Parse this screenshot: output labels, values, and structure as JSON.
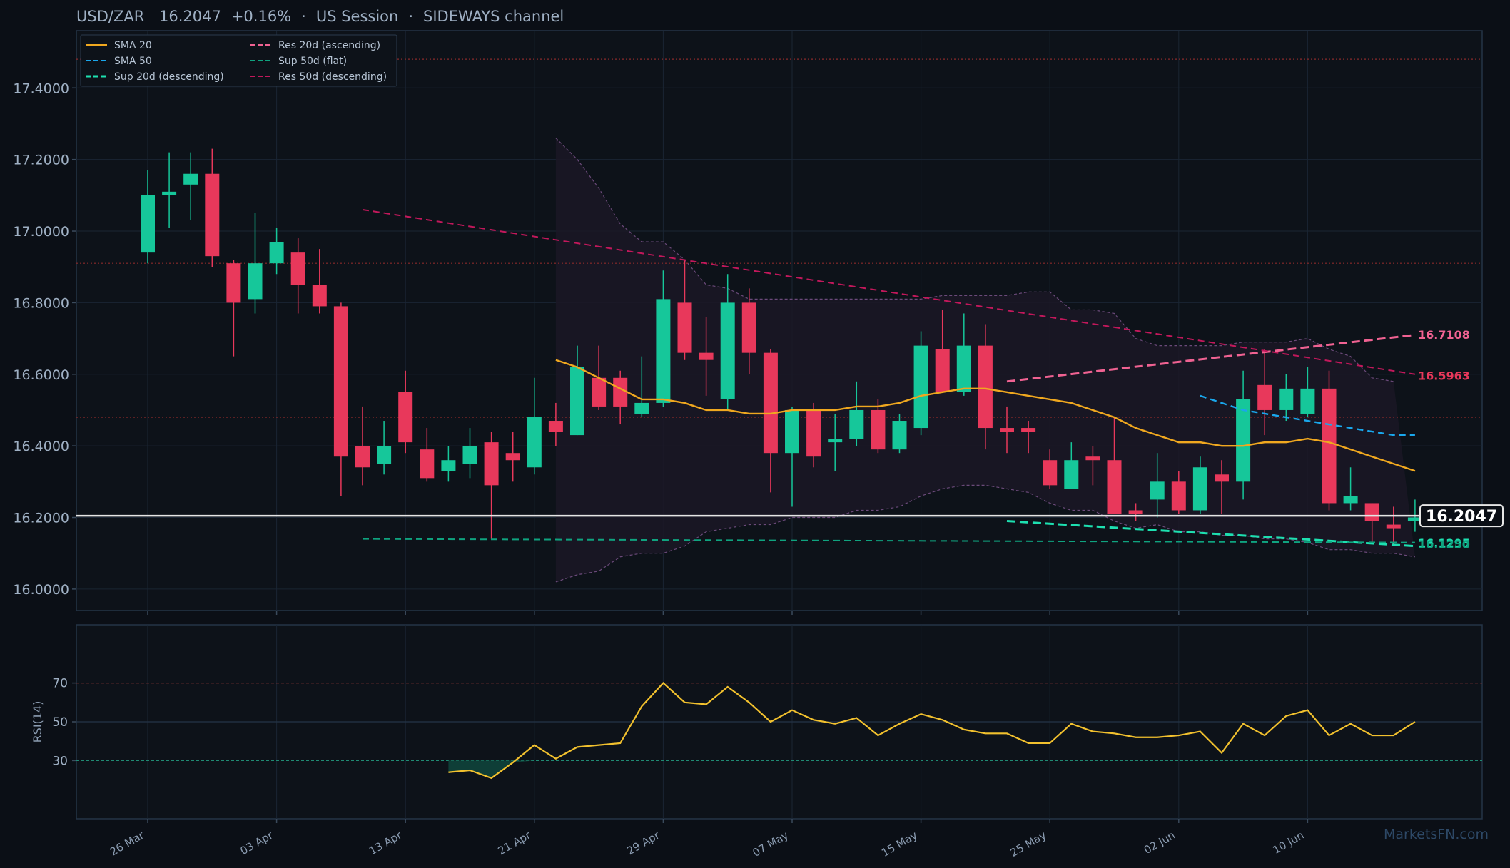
{
  "header": {
    "pair": "USD/ZAR",
    "price": "16.2047",
    "change": "+0.16%",
    "sep1": "·",
    "session": "US Session",
    "sep2": "·",
    "channel": "SIDEWAYS channel"
  },
  "watermark": "MarketsFN.com",
  "colors": {
    "background": "#0b0f16",
    "panel": "#0d1219",
    "bull": "#16c79a",
    "bear": "#e8385b",
    "sma20": "#f0a81f",
    "sma50": "#1aa7ec",
    "sup20": "#1de0b0",
    "res20": "#f06292",
    "sup50": "#0fa37f",
    "res50": "#c2185b",
    "rsi": "#f2c12e",
    "band": "#6b4a7a"
  },
  "chart_data": [
    {
      "type": "candlestick",
      "title": "",
      "ylim": [
        15.94,
        17.56
      ],
      "y_ticks": [
        "16.0000",
        "16.2000",
        "16.4000",
        "16.6000",
        "16.8000",
        "17.0000",
        "17.2000",
        "17.4000"
      ],
      "x_ticks": [
        "26 Mar",
        "03 Apr",
        "13 Apr",
        "21 Apr",
        "29 Apr",
        "07 May",
        "15 May",
        "25 May",
        "02 Jun",
        "10 Jun"
      ],
      "x_tick_index": [
        0,
        6,
        12,
        18,
        24,
        30,
        36,
        42,
        48,
        54
      ],
      "candles": [
        {
          "o": 16.94,
          "h": 17.17,
          "l": 16.91,
          "c": 17.1
        },
        {
          "o": 17.1,
          "h": 17.22,
          "l": 17.01,
          "c": 17.11
        },
        {
          "o": 17.13,
          "h": 17.22,
          "l": 17.03,
          "c": 17.16
        },
        {
          "o": 17.16,
          "h": 17.23,
          "l": 16.9,
          "c": 16.93
        },
        {
          "o": 16.91,
          "h": 16.92,
          "l": 16.65,
          "c": 16.8
        },
        {
          "o": 16.81,
          "h": 17.05,
          "l": 16.77,
          "c": 16.91
        },
        {
          "o": 16.91,
          "h": 17.01,
          "l": 16.88,
          "c": 16.97
        },
        {
          "o": 16.94,
          "h": 16.98,
          "l": 16.77,
          "c": 16.85
        },
        {
          "o": 16.85,
          "h": 16.95,
          "l": 16.77,
          "c": 16.79
        },
        {
          "o": 16.79,
          "h": 16.8,
          "l": 16.26,
          "c": 16.37
        },
        {
          "o": 16.4,
          "h": 16.51,
          "l": 16.29,
          "c": 16.34
        },
        {
          "o": 16.35,
          "h": 16.47,
          "l": 16.32,
          "c": 16.4
        },
        {
          "o": 16.55,
          "h": 16.61,
          "l": 16.38,
          "c": 16.41
        },
        {
          "o": 16.39,
          "h": 16.45,
          "l": 16.3,
          "c": 16.31
        },
        {
          "o": 16.33,
          "h": 16.4,
          "l": 16.3,
          "c": 16.36
        },
        {
          "o": 16.35,
          "h": 16.45,
          "l": 16.31,
          "c": 16.4
        },
        {
          "o": 16.41,
          "h": 16.44,
          "l": 16.14,
          "c": 16.29
        },
        {
          "o": 16.38,
          "h": 16.44,
          "l": 16.3,
          "c": 16.36
        },
        {
          "o": 16.34,
          "h": 16.59,
          "l": 16.32,
          "c": 16.48
        },
        {
          "o": 16.47,
          "h": 16.52,
          "l": 16.4,
          "c": 16.44
        },
        {
          "o": 16.43,
          "h": 16.68,
          "l": 16.43,
          "c": 16.62
        },
        {
          "o": 16.59,
          "h": 16.68,
          "l": 16.5,
          "c": 16.51
        },
        {
          "o": 16.59,
          "h": 16.61,
          "l": 16.46,
          "c": 16.51
        },
        {
          "o": 16.49,
          "h": 16.65,
          "l": 16.48,
          "c": 16.52
        },
        {
          "o": 16.52,
          "h": 16.89,
          "l": 16.51,
          "c": 16.81
        },
        {
          "o": 16.8,
          "h": 16.92,
          "l": 16.64,
          "c": 16.66
        },
        {
          "o": 16.66,
          "h": 16.76,
          "l": 16.54,
          "c": 16.64
        },
        {
          "o": 16.53,
          "h": 16.88,
          "l": 16.5,
          "c": 16.8
        },
        {
          "o": 16.8,
          "h": 16.84,
          "l": 16.6,
          "c": 16.66
        },
        {
          "o": 16.66,
          "h": 16.67,
          "l": 16.27,
          "c": 16.38
        },
        {
          "o": 16.38,
          "h": 16.51,
          "l": 16.23,
          "c": 16.5
        },
        {
          "o": 16.5,
          "h": 16.52,
          "l": 16.34,
          "c": 16.37
        },
        {
          "o": 16.41,
          "h": 16.49,
          "l": 16.33,
          "c": 16.42
        },
        {
          "o": 16.42,
          "h": 16.58,
          "l": 16.4,
          "c": 16.5
        },
        {
          "o": 16.5,
          "h": 16.53,
          "l": 16.38,
          "c": 16.39
        },
        {
          "o": 16.39,
          "h": 16.49,
          "l": 16.38,
          "c": 16.47
        },
        {
          "o": 16.45,
          "h": 16.72,
          "l": 16.43,
          "c": 16.68
        },
        {
          "o": 16.67,
          "h": 16.78,
          "l": 16.55,
          "c": 16.55
        },
        {
          "o": 16.55,
          "h": 16.77,
          "l": 16.54,
          "c": 16.68
        },
        {
          "o": 16.68,
          "h": 16.74,
          "l": 16.39,
          "c": 16.45
        },
        {
          "o": 16.45,
          "h": 16.51,
          "l": 16.38,
          "c": 16.44
        },
        {
          "o": 16.45,
          "h": 16.47,
          "l": 16.38,
          "c": 16.44
        },
        {
          "o": 16.36,
          "h": 16.39,
          "l": 16.28,
          "c": 16.29
        },
        {
          "o": 16.28,
          "h": 16.41,
          "l": 16.28,
          "c": 16.36
        },
        {
          "o": 16.37,
          "h": 16.4,
          "l": 16.29,
          "c": 16.36
        },
        {
          "o": 16.36,
          "h": 16.48,
          "l": 16.21,
          "c": 16.21
        },
        {
          "o": 16.22,
          "h": 16.24,
          "l": 16.19,
          "c": 16.21
        },
        {
          "o": 16.25,
          "h": 16.38,
          "l": 16.2,
          "c": 16.3
        },
        {
          "o": 16.3,
          "h": 16.33,
          "l": 16.21,
          "c": 16.22
        },
        {
          "o": 16.22,
          "h": 16.37,
          "l": 16.21,
          "c": 16.34
        },
        {
          "o": 16.32,
          "h": 16.36,
          "l": 16.21,
          "c": 16.3
        },
        {
          "o": 16.3,
          "h": 16.61,
          "l": 16.25,
          "c": 16.53
        },
        {
          "o": 16.57,
          "h": 16.67,
          "l": 16.43,
          "c": 16.5
        },
        {
          "o": 16.5,
          "h": 16.6,
          "l": 16.47,
          "c": 16.56
        },
        {
          "o": 16.49,
          "h": 16.62,
          "l": 16.48,
          "c": 16.56
        },
        {
          "o": 16.56,
          "h": 16.61,
          "l": 16.22,
          "c": 16.24
        },
        {
          "o": 16.24,
          "h": 16.34,
          "l": 16.22,
          "c": 16.26
        },
        {
          "o": 16.24,
          "h": 16.24,
          "l": 16.13,
          "c": 16.19
        },
        {
          "o": 16.18,
          "h": 16.23,
          "l": 16.12,
          "c": 16.17
        },
        {
          "o": 16.19,
          "h": 16.25,
          "l": 16.16,
          "c": 16.2
        }
      ],
      "series": [
        {
          "name": "SMA 20",
          "start": 19,
          "values": [
            16.64,
            16.62,
            16.59,
            16.56,
            16.53,
            16.53,
            16.52,
            16.5,
            16.5,
            16.49,
            16.49,
            16.5,
            16.5,
            16.5,
            16.51,
            16.51,
            16.52,
            16.54,
            16.55,
            16.56,
            16.56,
            16.55,
            16.54,
            16.53,
            16.52,
            16.5,
            16.48,
            16.45,
            16.43,
            16.41,
            16.41,
            16.4,
            16.4,
            16.41,
            16.41,
            16.42,
            16.41,
            16.39,
            16.37,
            16.35,
            16.33
          ]
        },
        {
          "name": "SMA 50",
          "start": 49,
          "values": [
            16.54,
            16.52,
            16.5,
            16.49,
            16.48,
            16.47,
            16.46,
            16.45,
            16.44,
            16.43,
            16.43
          ]
        },
        {
          "name": "Sup 20d (descending)",
          "start": 40,
          "end": 59,
          "values": [
            16.19,
            16.12
          ]
        },
        {
          "name": "Res 20d (ascending)",
          "start": 40,
          "end": 59,
          "values": [
            16.58,
            16.71
          ]
        },
        {
          "name": "Sup 50d (flat)",
          "start": 10,
          "end": 59,
          "values": [
            16.14,
            16.13
          ]
        },
        {
          "name": "Res 50d (descending)",
          "start": 10,
          "end": 59,
          "values": [
            17.06,
            16.6
          ]
        }
      ],
      "band_upper": {
        "start": 19,
        "values": [
          17.26,
          17.2,
          17.12,
          17.02,
          16.97,
          16.97,
          16.92,
          16.85,
          16.84,
          16.81,
          16.81,
          16.81,
          16.81,
          16.81,
          16.81,
          16.81,
          16.81,
          16.81,
          16.82,
          16.82,
          16.82,
          16.82,
          16.83,
          16.83,
          16.78,
          16.78,
          16.77,
          16.7,
          16.68,
          16.68,
          16.68,
          16.68,
          16.69,
          16.69,
          16.69,
          16.7,
          16.67,
          16.65,
          16.59,
          16.58
        ]
      },
      "band_lower": {
        "start": 19,
        "values": [
          16.02,
          16.04,
          16.05,
          16.09,
          16.1,
          16.1,
          16.12,
          16.16,
          16.17,
          16.18,
          16.18,
          16.2,
          16.2,
          16.2,
          16.22,
          16.22,
          16.23,
          16.26,
          16.28,
          16.29,
          16.29,
          16.28,
          16.27,
          16.24,
          16.22,
          16.22,
          16.19,
          16.17,
          16.18,
          16.16,
          16.16,
          16.15,
          16.15,
          16.14,
          16.14,
          16.13,
          16.11,
          16.11,
          16.1,
          16.1,
          16.09
        ]
      },
      "level_lines": [
        17.48,
        16.91,
        16.48
      ],
      "current_price": 16.2047,
      "current_price_label": "16.2047",
      "right_labels": [
        {
          "text": "16.7108",
          "value": 16.7108,
          "color": "#f06292"
        },
        {
          "text": "16.5963",
          "value": 16.5963,
          "color": "#e8385b"
        },
        {
          "text": "16.1295",
          "value": 16.1295,
          "color": "#1de0b0"
        },
        {
          "text": "16.1250",
          "value": 16.125,
          "color": "#0fa37f"
        }
      ],
      "legend": [
        {
          "label": "SMA 20",
          "color": "#f0a81f",
          "dash": "solid"
        },
        {
          "label": "Res 20d (ascending)",
          "color": "#f06292",
          "dash": "dashed-thick"
        },
        {
          "label": "SMA 50",
          "color": "#1aa7ec",
          "dash": "dashed"
        },
        {
          "label": "Sup 50d (flat)",
          "color": "#0fa37f",
          "dash": "dashed"
        },
        {
          "label": "Sup 20d (descending)",
          "color": "#1de0b0",
          "dash": "dashed-thick"
        },
        {
          "label": "Res 50d (descending)",
          "color": "#c2185b",
          "dash": "dashed"
        }
      ],
      "legend_position": "top-left",
      "grid": true
    },
    {
      "type": "line",
      "ylabel": "RSI(14)",
      "ylim": [
        0,
        100
      ],
      "y_ticks": [
        "30",
        "50",
        "70"
      ],
      "ref_lines": [
        70,
        50,
        30
      ],
      "series": [
        {
          "name": "",
          "start": 14,
          "values": [
            24,
            25,
            21,
            29,
            38,
            31,
            37,
            38,
            39,
            58,
            70,
            60,
            59,
            68,
            60,
            50,
            56,
            51,
            49,
            52,
            43,
            49,
            54,
            51,
            46,
            44,
            44,
            39,
            39,
            49,
            45,
            44,
            42,
            42,
            43,
            45,
            34,
            49,
            43,
            53,
            56,
            43,
            49,
            43,
            43,
            50
          ]
        }
      ]
    }
  ]
}
